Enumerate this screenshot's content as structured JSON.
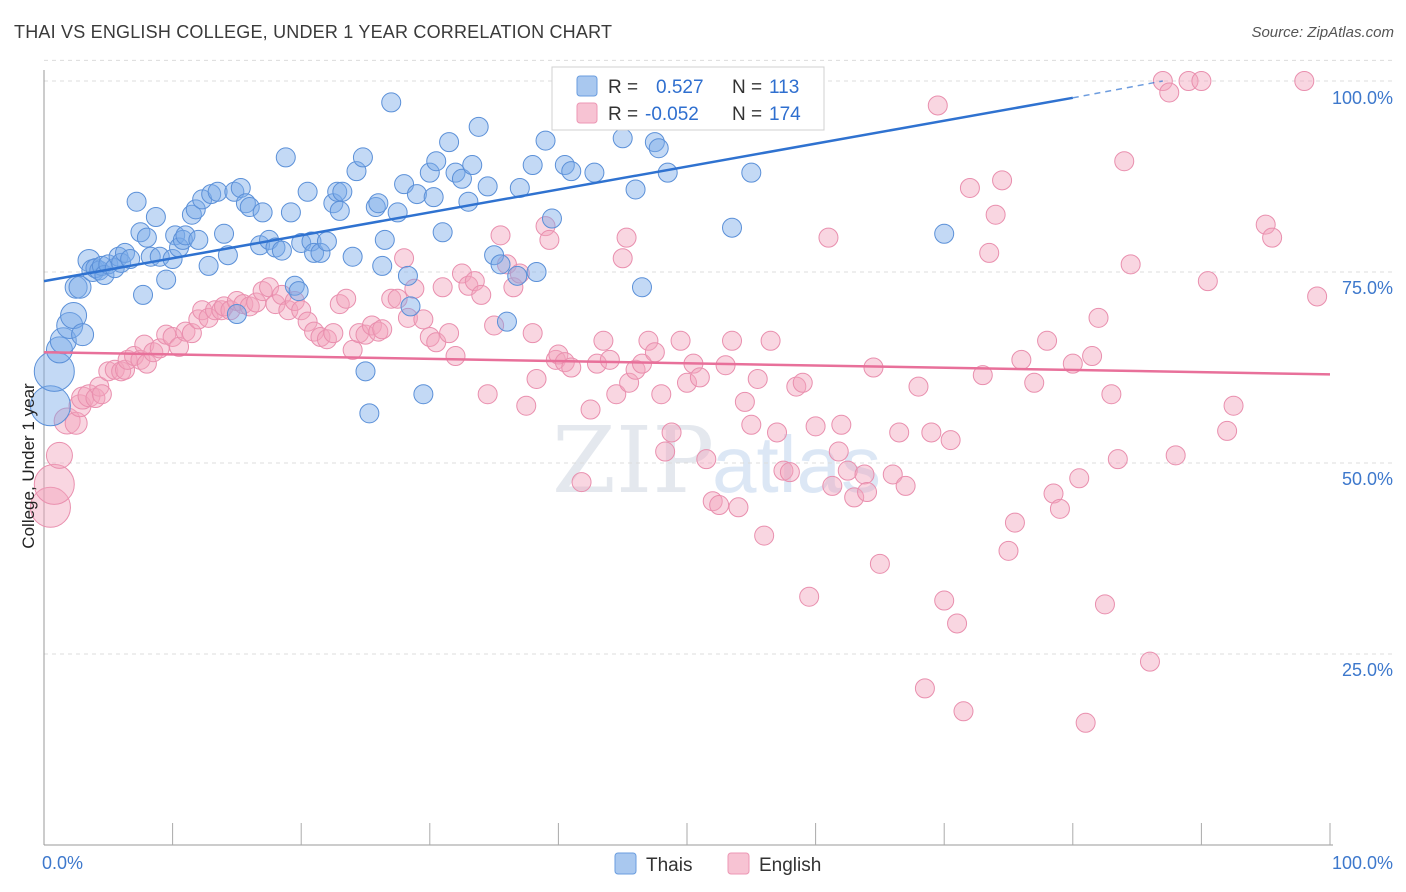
{
  "title": "THAI VS ENGLISH COLLEGE, UNDER 1 YEAR CORRELATION CHART",
  "source": "Source: ZipAtlas.com",
  "watermark": {
    "zip": "ZIP",
    "atlas": "atlas"
  },
  "colors": {
    "thais": "#7aaae8",
    "thais_line": "#2f72d0",
    "english": "#f2a3bd",
    "english_line": "#e8709a",
    "axis_text": "#3d78cc"
  },
  "legend_box": {
    "rows": [
      {
        "r_label": "R = ",
        "r_value": "0.527",
        "n_label": "N = ",
        "n_value": "113"
      },
      {
        "r_label": "R = ",
        "r_value": "-0.052",
        "n_label": "N = ",
        "n_value": "174"
      }
    ]
  },
  "chart_data": {
    "type": "scatter",
    "title": "THAI VS ENGLISH COLLEGE, UNDER 1 YEAR CORRELATION CHART",
    "xlabel": "",
    "ylabel": "College, Under 1 year",
    "xlim": [
      0,
      100
    ],
    "ylim": [
      0,
      103
    ],
    "x_tick_labels": [
      "0.0%",
      "100.0%"
    ],
    "y_ticks": [
      25,
      50,
      75,
      100
    ],
    "y_tick_labels": [
      "25.0%",
      "50.0%",
      "75.0%",
      "100.0%"
    ],
    "legend": [
      "Thais",
      "English"
    ],
    "series": [
      {
        "name": "Thais",
        "r": 0.527,
        "n": 113,
        "trend": {
          "x0": 0,
          "y0": 73.8,
          "x1": 80,
          "y1": 97.8,
          "dash_to_x": 87,
          "dash_to_y": 100
        },
        "points": [
          [
            0.5,
            57.5
          ],
          [
            0.8,
            62
          ],
          [
            1.2,
            64.8
          ],
          [
            1.5,
            66
          ],
          [
            2,
            68
          ],
          [
            2.3,
            69.3
          ],
          [
            2.5,
            73
          ],
          [
            2.8,
            73
          ],
          [
            3,
            66.8
          ],
          [
            3.5,
            76.5
          ],
          [
            3.8,
            75.2
          ],
          [
            4,
            75.5
          ],
          [
            4.3,
            75.2
          ],
          [
            4.5,
            75.8
          ],
          [
            4.7,
            74.6
          ],
          [
            5,
            76
          ],
          [
            5.5,
            75.5
          ],
          [
            5.8,
            77
          ],
          [
            6,
            76.2
          ],
          [
            6.3,
            77.5
          ],
          [
            6.7,
            76.7
          ],
          [
            7.2,
            84.2
          ],
          [
            7.5,
            80.2
          ],
          [
            7.7,
            72
          ],
          [
            8,
            79.5
          ],
          [
            8.3,
            77
          ],
          [
            8.7,
            82.2
          ],
          [
            9,
            77
          ],
          [
            9.5,
            74
          ],
          [
            10,
            76.7
          ],
          [
            10.2,
            79.8
          ],
          [
            10.5,
            78.2
          ],
          [
            10.8,
            79.2
          ],
          [
            11,
            79.8
          ],
          [
            11.5,
            82.5
          ],
          [
            11.8,
            83.2
          ],
          [
            12,
            79.2
          ],
          [
            12.3,
            84.5
          ],
          [
            12.8,
            75.8
          ],
          [
            13,
            85.2
          ],
          [
            13.5,
            85.5
          ],
          [
            14,
            80
          ],
          [
            14.3,
            77.2
          ],
          [
            14.8,
            85.5
          ],
          [
            15,
            69.5
          ],
          [
            15.3,
            86
          ],
          [
            15.7,
            84
          ],
          [
            16,
            83.5
          ],
          [
            16.8,
            78.5
          ],
          [
            17,
            82.8
          ],
          [
            17.5,
            79.2
          ],
          [
            18,
            78.2
          ],
          [
            18.5,
            77.8
          ],
          [
            18.8,
            90
          ],
          [
            19.2,
            82.8
          ],
          [
            19.5,
            73.2
          ],
          [
            19.8,
            72.5
          ],
          [
            20,
            78.8
          ],
          [
            20.5,
            85.5
          ],
          [
            20.8,
            79
          ],
          [
            21,
            77.5
          ],
          [
            21.5,
            77.5
          ],
          [
            22,
            79
          ],
          [
            22.5,
            84
          ],
          [
            22.8,
            85.5
          ],
          [
            23,
            83
          ],
          [
            23.2,
            85.5
          ],
          [
            24,
            77
          ],
          [
            24.3,
            88.2
          ],
          [
            24.8,
            90
          ],
          [
            25,
            62
          ],
          [
            25.3,
            56.5
          ],
          [
            25.8,
            83.5
          ],
          [
            26,
            84
          ],
          [
            26.3,
            75.8
          ],
          [
            26.5,
            79.2
          ],
          [
            27,
            97.2
          ],
          [
            27.5,
            82.8
          ],
          [
            28,
            86.5
          ],
          [
            28.3,
            74.5
          ],
          [
            28.5,
            70.5
          ],
          [
            29,
            85.2
          ],
          [
            29.5,
            59
          ],
          [
            30,
            88
          ],
          [
            30.3,
            84.8
          ],
          [
            30.5,
            89.5
          ],
          [
            31,
            80.2
          ],
          [
            31.5,
            92
          ],
          [
            32,
            88
          ],
          [
            32.5,
            87.2
          ],
          [
            33,
            84.2
          ],
          [
            33.3,
            89
          ],
          [
            33.8,
            94
          ],
          [
            34.5,
            86.2
          ],
          [
            35,
            77.2
          ],
          [
            35.5,
            76
          ],
          [
            36,
            68.5
          ],
          [
            36.8,
            74.5
          ],
          [
            37,
            86
          ],
          [
            38,
            89
          ],
          [
            38.3,
            75
          ],
          [
            39,
            92.2
          ],
          [
            39.5,
            82
          ],
          [
            40.5,
            89
          ],
          [
            41,
            88.2
          ],
          [
            42,
            95.2
          ],
          [
            42.8,
            88
          ],
          [
            45,
            92.5
          ],
          [
            46,
            85.8
          ],
          [
            46.5,
            73
          ],
          [
            47.5,
            92
          ],
          [
            47.8,
            91.2
          ],
          [
            48.5,
            88
          ],
          [
            53.5,
            80.8
          ],
          [
            55,
            88
          ],
          [
            70,
            80
          ]
        ]
      },
      {
        "name": "English",
        "r": -0.052,
        "n": 174,
        "trend": {
          "x0": 0,
          "y0": 64.5,
          "x1": 100,
          "y1": 61.6
        },
        "points": [
          [
            0.5,
            44.2
          ],
          [
            0.8,
            47.2
          ],
          [
            1.2,
            51
          ],
          [
            1.8,
            55.5
          ],
          [
            2.5,
            55.2
          ],
          [
            2.8,
            57.5
          ],
          [
            3,
            58.5
          ],
          [
            3.5,
            58.8
          ],
          [
            4,
            58.5
          ],
          [
            4.3,
            60
          ],
          [
            4.5,
            59
          ],
          [
            5,
            62
          ],
          [
            5.5,
            62.2
          ],
          [
            6,
            62
          ],
          [
            6.3,
            62.2
          ],
          [
            6.5,
            63.5
          ],
          [
            7,
            64
          ],
          [
            7.5,
            63.5
          ],
          [
            7.8,
            65.5
          ],
          [
            8,
            63
          ],
          [
            8.5,
            64.5
          ],
          [
            9,
            65
          ],
          [
            9.5,
            66.8
          ],
          [
            10,
            66.5
          ],
          [
            10.5,
            65.2
          ],
          [
            11,
            67.2
          ],
          [
            11.5,
            67
          ],
          [
            12,
            68.8
          ],
          [
            12.3,
            70
          ],
          [
            12.8,
            69
          ],
          [
            13.3,
            70
          ],
          [
            13.8,
            70
          ],
          [
            14,
            70.5
          ],
          [
            14.5,
            70
          ],
          [
            15,
            71.2
          ],
          [
            15.5,
            70.8
          ],
          [
            16,
            70.5
          ],
          [
            16.5,
            71
          ],
          [
            17,
            72.5
          ],
          [
            17.5,
            73
          ],
          [
            18,
            70.8
          ],
          [
            18.5,
            72
          ],
          [
            19,
            70
          ],
          [
            19.5,
            71.2
          ],
          [
            20,
            70
          ],
          [
            20.5,
            68.5
          ],
          [
            21,
            67.2
          ],
          [
            21.5,
            66.5
          ],
          [
            22,
            66.2
          ],
          [
            22.5,
            67
          ],
          [
            23,
            70.8
          ],
          [
            23.5,
            71.5
          ],
          [
            24,
            64.8
          ],
          [
            24.5,
            67
          ],
          [
            25,
            66.8
          ],
          [
            25.5,
            68
          ],
          [
            26,
            67.2
          ],
          [
            26.3,
            67.5
          ],
          [
            27,
            71.5
          ],
          [
            27.5,
            71.5
          ],
          [
            28,
            76.8
          ],
          [
            28.3,
            69
          ],
          [
            28.8,
            72.8
          ],
          [
            29.5,
            68.8
          ],
          [
            30,
            66.5
          ],
          [
            30.5,
            65.8
          ],
          [
            31,
            73
          ],
          [
            31.5,
            67
          ],
          [
            32,
            64
          ],
          [
            32.5,
            74.8
          ],
          [
            33,
            73.2
          ],
          [
            33.5,
            73.8
          ],
          [
            34,
            72
          ],
          [
            34.5,
            59
          ],
          [
            35,
            68
          ],
          [
            35.5,
            79.8
          ],
          [
            36,
            76
          ],
          [
            36.5,
            73
          ],
          [
            37,
            74.8
          ],
          [
            37.5,
            57.5
          ],
          [
            38,
            67
          ],
          [
            38.3,
            61
          ],
          [
            39,
            81
          ],
          [
            39.3,
            79.2
          ],
          [
            39.8,
            63.5
          ],
          [
            40,
            64.2
          ],
          [
            40.5,
            63.2
          ],
          [
            41,
            62.5
          ],
          [
            41.8,
            47.5
          ],
          [
            42.5,
            57
          ],
          [
            43,
            63
          ],
          [
            43.5,
            66
          ],
          [
            44,
            63.5
          ],
          [
            44.5,
            59
          ],
          [
            45,
            76.8
          ],
          [
            45.3,
            79.5
          ],
          [
            45.5,
            60.5
          ],
          [
            46,
            62.2
          ],
          [
            46.5,
            63
          ],
          [
            47,
            66
          ],
          [
            47.5,
            64.5
          ],
          [
            48,
            59
          ],
          [
            48.3,
            51.5
          ],
          [
            48.8,
            54
          ],
          [
            49.5,
            66
          ],
          [
            50,
            60.5
          ],
          [
            50.5,
            63
          ],
          [
            51,
            61.2
          ],
          [
            51.5,
            50.5
          ],
          [
            52,
            45
          ],
          [
            52.5,
            44.5
          ],
          [
            53,
            62.8
          ],
          [
            53.5,
            66
          ],
          [
            54,
            44.2
          ],
          [
            54.5,
            58
          ],
          [
            55,
            55
          ],
          [
            55.5,
            61
          ],
          [
            56,
            40.5
          ],
          [
            56.5,
            66
          ],
          [
            57,
            54
          ],
          [
            57.5,
            49
          ],
          [
            58,
            48.8
          ],
          [
            58.5,
            60
          ],
          [
            59,
            60.5
          ],
          [
            59.5,
            32.5
          ],
          [
            60,
            54.8
          ],
          [
            61,
            79.5
          ],
          [
            61.3,
            47
          ],
          [
            61.8,
            51.5
          ],
          [
            62,
            55
          ],
          [
            62.5,
            49
          ],
          [
            63,
            45.5
          ],
          [
            63.8,
            48.5
          ],
          [
            64,
            46.2
          ],
          [
            64.5,
            62.5
          ],
          [
            65,
            36.8
          ],
          [
            66,
            48.5
          ],
          [
            66.5,
            54
          ],
          [
            67,
            47
          ],
          [
            68,
            60
          ],
          [
            68.5,
            20.5
          ],
          [
            69,
            54
          ],
          [
            69.5,
            96.8
          ],
          [
            70,
            32
          ],
          [
            70.5,
            53
          ],
          [
            71,
            29
          ],
          [
            71.5,
            17.5
          ],
          [
            72,
            86
          ],
          [
            73,
            61.5
          ],
          [
            73.5,
            77.5
          ],
          [
            74,
            82.5
          ],
          [
            74.5,
            87
          ],
          [
            75,
            38.5
          ],
          [
            75.5,
            42.2
          ],
          [
            76,
            63.5
          ],
          [
            77,
            60.5
          ],
          [
            78,
            66
          ],
          [
            78.5,
            46
          ],
          [
            79,
            44
          ],
          [
            80,
            63
          ],
          [
            80.5,
            48
          ],
          [
            81,
            16
          ],
          [
            81.5,
            64
          ],
          [
            82,
            69
          ],
          [
            82.5,
            31.5
          ],
          [
            83,
            59
          ],
          [
            83.5,
            50.5
          ],
          [
            84,
            89.5
          ],
          [
            84.5,
            76
          ],
          [
            86,
            24
          ],
          [
            87,
            100
          ],
          [
            87.5,
            98.5
          ],
          [
            88,
            51
          ],
          [
            89,
            100
          ],
          [
            90,
            100
          ],
          [
            90.5,
            73.8
          ],
          [
            92,
            54.2
          ],
          [
            92.5,
            57.5
          ],
          [
            95,
            81.2
          ],
          [
            95.5,
            79.5
          ],
          [
            98,
            100
          ],
          [
            99,
            71.8
          ]
        ]
      }
    ]
  },
  "axis": {
    "y_title": "College, Under 1 year",
    "x_left": "0.0%",
    "x_right": "100.0%"
  },
  "bottom_legend": {
    "items": [
      {
        "label": "Thais"
      },
      {
        "label": "English"
      }
    ]
  }
}
